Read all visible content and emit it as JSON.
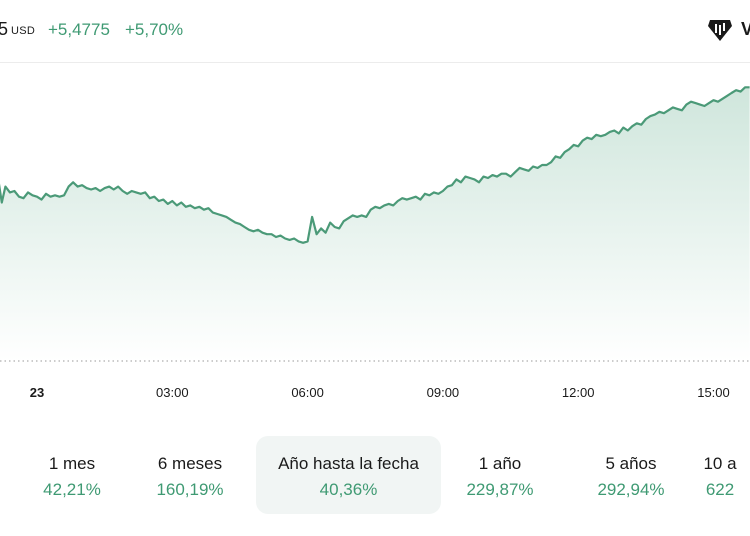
{
  "header": {
    "price_fragment": "5",
    "currency": "USD",
    "change_abs": "+5,4775",
    "change_pct": "+5,70%",
    "brand_partial": "V"
  },
  "colors": {
    "positive": "#3f9a73",
    "line": "#4b9a78",
    "area_top": "#cfe6dc",
    "area_bottom": "#ffffff"
  },
  "periods": [
    {
      "label": "1 mes",
      "value": "42,21%",
      "active": false
    },
    {
      "label": "6 meses",
      "value": "160,19%",
      "active": false
    },
    {
      "label": "Año hasta la fecha",
      "value": "40,36%",
      "active": true
    },
    {
      "label": "1 año",
      "value": "229,87%",
      "active": false
    },
    {
      "label": "5 años",
      "value": "292,94%",
      "active": false
    },
    {
      "label": "10 a",
      "value": "622",
      "active": false
    }
  ],
  "chart_data": {
    "type": "area",
    "x_tick_labels": [
      "23",
      "03:00",
      "06:00",
      "09:00",
      "12:00",
      "15:00"
    ],
    "x_hours": [
      0,
      3,
      6,
      9,
      12,
      15
    ],
    "baseline_dotted": true,
    "series": [
      {
        "x_hours": [
          -0.85,
          -0.78,
          -0.7,
          -0.6,
          -0.5,
          -0.4,
          -0.3,
          -0.2,
          -0.1,
          0.0,
          0.1,
          0.2,
          0.3,
          0.4,
          0.5,
          0.6,
          0.7,
          0.8,
          0.9,
          1.0,
          1.1,
          1.2,
          1.3,
          1.4,
          1.5,
          1.6,
          1.7,
          1.8,
          1.9,
          2.0,
          2.1,
          2.2,
          2.3,
          2.4,
          2.5,
          2.6,
          2.7,
          2.8,
          2.9,
          3.0,
          3.1,
          3.2,
          3.3,
          3.4,
          3.5,
          3.6,
          3.7,
          3.8,
          3.9,
          4.0,
          4.1,
          4.2,
          4.3,
          4.4,
          4.5,
          4.6,
          4.7,
          4.8,
          4.9,
          5.0,
          5.1,
          5.2,
          5.3,
          5.4,
          5.5,
          5.6,
          5.7,
          5.8,
          5.9,
          6.0,
          6.1,
          6.2,
          6.3,
          6.4,
          6.5,
          6.6,
          6.7,
          6.8,
          6.9,
          7.0,
          7.1,
          7.2,
          7.3,
          7.4,
          7.5,
          7.6,
          7.7,
          7.8,
          7.9,
          8.0,
          8.1,
          8.2,
          8.3,
          8.4,
          8.5,
          8.6,
          8.7,
          8.8,
          8.9,
          9.0,
          9.1,
          9.2,
          9.3,
          9.4,
          9.5,
          9.6,
          9.7,
          9.8,
          9.9,
          10.0,
          10.1,
          10.2,
          10.3,
          10.4,
          10.5,
          10.6,
          10.7,
          10.8,
          10.9,
          11.0,
          11.1,
          11.2,
          11.3,
          11.4,
          11.5,
          11.6,
          11.7,
          11.8,
          11.9,
          12.0,
          12.1,
          12.2,
          12.3,
          12.4,
          12.5,
          12.6,
          12.7,
          12.8,
          12.9,
          13.0,
          13.1,
          13.2,
          13.3,
          13.4,
          13.5,
          13.6,
          13.7,
          13.8,
          13.9,
          14.0,
          14.1,
          14.2,
          14.3,
          14.4,
          14.5,
          14.6,
          14.7,
          14.8,
          14.9,
          15.0,
          15.1,
          15.2,
          15.3,
          15.4,
          15.5,
          15.6,
          15.7,
          15.8
        ],
        "y": [
          91.2,
          89.8,
          90.9,
          90.5,
          90.6,
          90.2,
          90.1,
          90.5,
          90.3,
          90.2,
          90.0,
          90.4,
          90.2,
          90.3,
          90.2,
          90.3,
          90.9,
          91.2,
          90.9,
          91.0,
          90.8,
          90.7,
          90.8,
          90.6,
          90.8,
          90.9,
          90.7,
          90.9,
          90.6,
          90.4,
          90.6,
          90.5,
          90.4,
          90.5,
          90.1,
          90.2,
          89.9,
          90.0,
          89.7,
          89.9,
          89.6,
          89.8,
          89.5,
          89.6,
          89.4,
          89.5,
          89.3,
          89.4,
          89.1,
          89.0,
          88.9,
          88.8,
          88.6,
          88.4,
          88.3,
          88.1,
          87.9,
          87.8,
          87.9,
          87.7,
          87.6,
          87.6,
          87.4,
          87.5,
          87.3,
          87.2,
          87.3,
          87.1,
          87.0,
          87.1,
          88.8,
          87.6,
          88.0,
          87.7,
          88.4,
          88.1,
          88.0,
          88.5,
          88.7,
          88.9,
          88.8,
          88.9,
          88.8,
          89.3,
          89.5,
          89.4,
          89.6,
          89.7,
          89.6,
          89.9,
          90.1,
          90.0,
          90.1,
          90.2,
          90.0,
          90.4,
          90.3,
          90.5,
          90.4,
          90.6,
          90.9,
          91.0,
          91.4,
          91.2,
          91.6,
          91.5,
          91.4,
          91.2,
          91.6,
          91.5,
          91.7,
          91.6,
          91.8,
          91.8,
          91.6,
          91.9,
          92.2,
          92.1,
          92.0,
          92.3,
          92.2,
          92.4,
          92.4,
          92.6,
          93.0,
          92.9,
          93.3,
          93.5,
          93.8,
          93.7,
          94.1,
          94.3,
          94.2,
          94.5,
          94.4,
          94.5,
          94.7,
          94.8,
          94.6,
          95.0,
          94.8,
          95.1,
          95.3,
          95.2,
          95.6,
          95.8,
          95.9,
          96.1,
          96.0,
          96.2,
          96.4,
          96.3,
          96.2,
          96.6,
          96.8,
          96.7,
          96.6,
          96.5,
          96.7,
          96.9,
          96.8,
          97.0,
          97.2,
          97.4,
          97.6,
          97.5,
          97.8,
          97.8
        ]
      }
    ],
    "ylim": [
      84,
      99
    ]
  }
}
